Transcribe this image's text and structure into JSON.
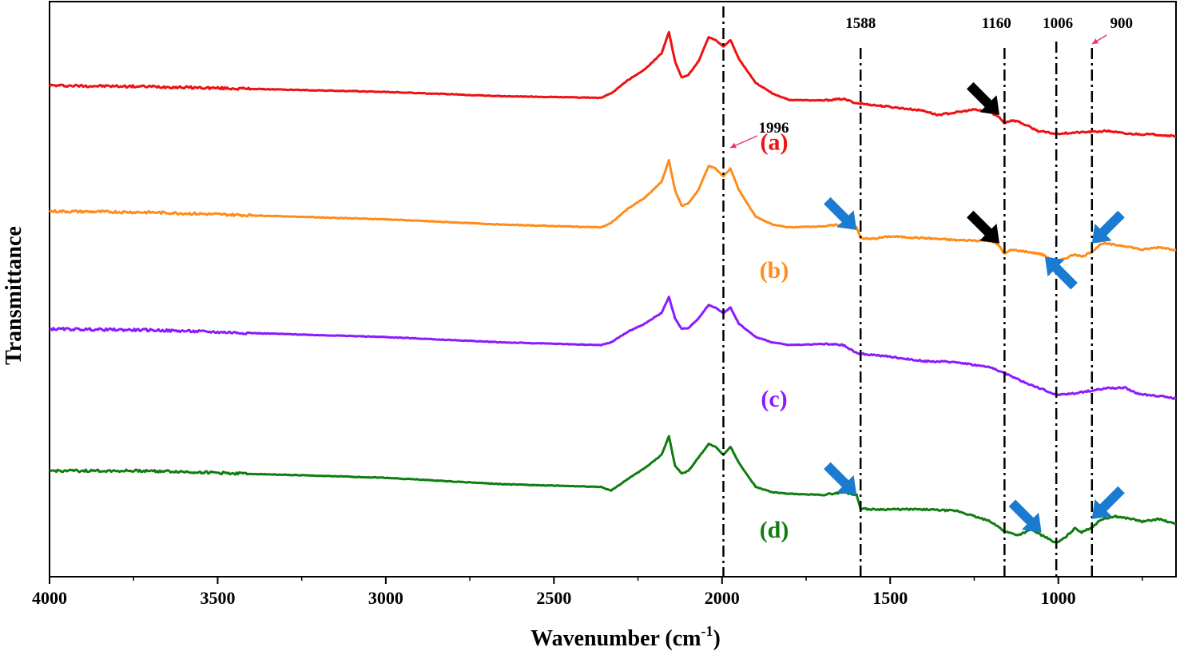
{
  "chart_data": {
    "type": "line",
    "title": "",
    "xlabel": "Wavenumber (cm",
    "xlabel_superscript": "-1",
    "xlabel_suffix": ")",
    "ylabel": "Transmittance",
    "xlim": [
      4000,
      650
    ],
    "x_reversed": true,
    "ylim": [
      0,
      1
    ],
    "y_ticks_labeled": false,
    "grid": false,
    "legend": "none",
    "x_ticks": [
      4000,
      3500,
      3000,
      2500,
      2000,
      1500,
      1000
    ],
    "reference_lines": [
      {
        "x": 1996,
        "label": "1996",
        "style": "dash-dot"
      },
      {
        "x": 1588,
        "label": "1588",
        "style": "dash-dot"
      },
      {
        "x": 1160,
        "label": "1160",
        "style": "dash-dot"
      },
      {
        "x": 1006,
        "label": "1006",
        "style": "dash-dot"
      },
      {
        "x": 900,
        "label": "900",
        "style": "dash-dot"
      }
    ],
    "series": [
      {
        "name": "(a)",
        "color": "#ee1111",
        "x": [
          4000,
          3700,
          3000,
          2650,
          2360,
          2330,
          2280,
          2230,
          2180,
          2158,
          2140,
          2120,
          2100,
          2070,
          2040,
          2020,
          1996,
          1975,
          1950,
          1900,
          1850,
          1800,
          1700,
          1640,
          1600,
          1500,
          1400,
          1360,
          1300,
          1250,
          1200,
          1175,
          1160,
          1140,
          1120,
          1060,
          1010,
          950,
          850,
          800,
          700,
          650
        ],
        "y": [
          0.885,
          0.883,
          0.873,
          0.865,
          0.862,
          0.87,
          0.895,
          0.915,
          0.945,
          0.985,
          0.93,
          0.9,
          0.905,
          0.93,
          0.975,
          0.97,
          0.958,
          0.97,
          0.935,
          0.89,
          0.87,
          0.858,
          0.857,
          0.86,
          0.852,
          0.845,
          0.838,
          0.83,
          0.835,
          0.84,
          0.835,
          0.825,
          0.815,
          0.82,
          0.818,
          0.8,
          0.795,
          0.797,
          0.8,
          0.795,
          0.793,
          0.79
        ]
      },
      {
        "name": "(b)",
        "color": "#ff8c1a",
        "x": [
          4000,
          3700,
          3000,
          2650,
          2360,
          2330,
          2280,
          2230,
          2180,
          2158,
          2140,
          2120,
          2100,
          2070,
          2040,
          2020,
          1996,
          1975,
          1950,
          1900,
          1850,
          1800,
          1700,
          1640,
          1600,
          1588,
          1560,
          1500,
          1400,
          1300,
          1200,
          1175,
          1160,
          1140,
          1100,
          1050,
          1006,
          980,
          950,
          930,
          900,
          870,
          800,
          750,
          700,
          650
        ],
        "y": [
          0.65,
          0.648,
          0.635,
          0.625,
          0.62,
          0.628,
          0.655,
          0.675,
          0.705,
          0.745,
          0.69,
          0.66,
          0.665,
          0.69,
          0.735,
          0.73,
          0.715,
          0.73,
          0.69,
          0.64,
          0.625,
          0.62,
          0.622,
          0.625,
          0.62,
          0.6,
          0.598,
          0.603,
          0.6,
          0.596,
          0.595,
          0.585,
          0.57,
          0.578,
          0.575,
          0.57,
          0.555,
          0.562,
          0.57,
          0.565,
          0.575,
          0.59,
          0.585,
          0.578,
          0.583,
          0.578
        ]
      },
      {
        "name": "(c)",
        "color": "#8c1aff",
        "x": [
          4000,
          3700,
          3000,
          2650,
          2360,
          2330,
          2280,
          2230,
          2180,
          2158,
          2140,
          2120,
          2100,
          2070,
          2040,
          2020,
          1996,
          1975,
          1950,
          1900,
          1850,
          1800,
          1700,
          1640,
          1600,
          1500,
          1400,
          1300,
          1200,
          1150,
          1100,
          1050,
          1006,
          950,
          900,
          850,
          800,
          760,
          700,
          650
        ],
        "y": [
          0.43,
          0.428,
          0.415,
          0.405,
          0.4,
          0.405,
          0.425,
          0.44,
          0.46,
          0.49,
          0.45,
          0.43,
          0.432,
          0.45,
          0.475,
          0.47,
          0.46,
          0.47,
          0.44,
          0.415,
          0.405,
          0.4,
          0.402,
          0.4,
          0.385,
          0.378,
          0.37,
          0.368,
          0.358,
          0.345,
          0.33,
          0.318,
          0.307,
          0.31,
          0.315,
          0.32,
          0.32,
          0.308,
          0.305,
          0.3
        ]
      },
      {
        "name": "(d)",
        "color": "#0f7d0f",
        "x": [
          4000,
          3700,
          3000,
          2650,
          2360,
          2330,
          2280,
          2230,
          2180,
          2158,
          2140,
          2120,
          2100,
          2070,
          2040,
          2020,
          1996,
          1975,
          1950,
          1900,
          1850,
          1800,
          1700,
          1640,
          1600,
          1588,
          1560,
          1400,
          1300,
          1250,
          1200,
          1160,
          1120,
          1080,
          1050,
          1006,
          980,
          950,
          930,
          900,
          870,
          830,
          780,
          750,
          700,
          650
        ],
        "y": [
          0.165,
          0.165,
          0.152,
          0.14,
          0.135,
          0.128,
          0.15,
          0.17,
          0.195,
          0.23,
          0.175,
          0.16,
          0.165,
          0.19,
          0.215,
          0.21,
          0.195,
          0.21,
          0.18,
          0.135,
          0.125,
          0.122,
          0.12,
          0.125,
          0.12,
          0.095,
          0.093,
          0.093,
          0.09,
          0.08,
          0.07,
          0.052,
          0.045,
          0.055,
          0.045,
          0.03,
          0.04,
          0.058,
          0.05,
          0.06,
          0.075,
          0.08,
          0.075,
          0.07,
          0.075,
          0.065
        ]
      }
    ],
    "series_labels": [
      {
        "text": "(a)",
        "color": "#ee1111",
        "anchor_x": 1845,
        "anchor_y": 0.78
      },
      {
        "text": "(b)",
        "color": "#ff8c1a",
        "anchor_x": 1845,
        "anchor_y": 0.54
      },
      {
        "text": "(c)",
        "color": "#8c1aff",
        "anchor_x": 1845,
        "anchor_y": 0.3
      },
      {
        "text": "(d)",
        "color": "#0f7d0f",
        "anchor_x": 1845,
        "anchor_y": 0.055
      }
    ],
    "annotation_arrows": [
      {
        "color": "#000000",
        "points_to_x": 1175,
        "points_to_y": 0.83,
        "series": "(a)"
      },
      {
        "color": "#000000",
        "points_to_x": 1175,
        "points_to_y": 0.59,
        "series": "(b)"
      },
      {
        "color": "#1a7bd1",
        "points_to_x": 1600,
        "points_to_y": 0.615,
        "series": "(b)"
      },
      {
        "color": "#1a7bd1",
        "points_to_x": 1040,
        "points_to_y": 0.565,
        "series": "(b)"
      },
      {
        "color": "#1a7bd1",
        "points_to_x": 900,
        "points_to_y": 0.59,
        "series": "(b)"
      },
      {
        "color": "#1a7bd1",
        "points_to_x": 1600,
        "points_to_y": 0.12,
        "series": "(d)"
      },
      {
        "color": "#1a7bd1",
        "points_to_x": 1050,
        "points_to_y": 0.05,
        "series": "(d)"
      },
      {
        "color": "#1a7bd1",
        "points_to_x": 900,
        "points_to_y": 0.075,
        "series": "(d)"
      }
    ],
    "pink_pointers": [
      {
        "label": "1996",
        "color": "#e8336d"
      },
      {
        "label": "900",
        "color": "#e8336d"
      }
    ]
  }
}
